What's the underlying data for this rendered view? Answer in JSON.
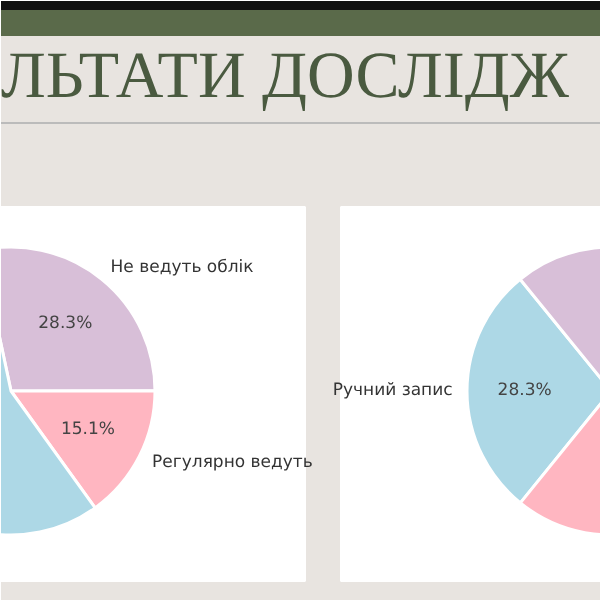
{
  "chart_data": [
    {
      "type": "pie",
      "title": "ЛЬТАТИ ДОСЛІДЖ",
      "categories": [
        "Не ведуть облік",
        "Регулярно ведуть",
        null
      ],
      "values": [
        28.3,
        15.1,
        56.6
      ],
      "colors": [
        "#d8bfd8",
        "#ffb6c1",
        "#add8e6"
      ],
      "value_labels": [
        "28.3%",
        "15.1%",
        null
      ]
    },
    {
      "type": "pie",
      "categories": [
        "Ручний запис",
        null,
        null
      ],
      "values": [
        28.3,
        36.0,
        35.7
      ],
      "colors": [
        "#add8e6",
        "#d8bfd8",
        "#ffb6c1"
      ],
      "value_labels": [
        "28.3%",
        null,
        null
      ]
    }
  ]
}
